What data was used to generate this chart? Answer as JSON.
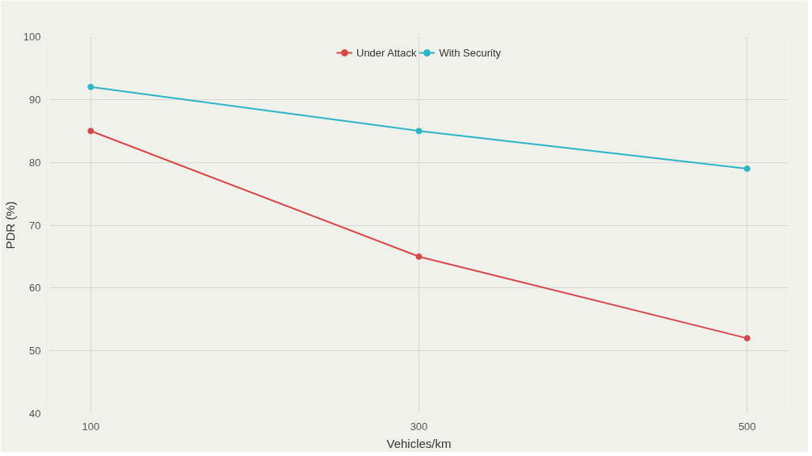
{
  "chart_data": {
    "type": "line",
    "xlabel": "Vehicles/km",
    "ylabel": "PDR (%)",
    "x": [
      100,
      300,
      500
    ],
    "series": [
      {
        "name": "Under Attack",
        "color": "#d94848",
        "values": [
          85,
          65,
          52
        ]
      },
      {
        "name": "With Security",
        "color": "#2bb5c8",
        "values": [
          92,
          85,
          79
        ]
      }
    ],
    "xlim": [
      75,
      525
    ],
    "xticks": [
      100,
      300,
      500
    ],
    "ylim": [
      40,
      100
    ],
    "yticks": [
      40,
      50,
      60,
      70,
      80,
      90,
      100
    ],
    "grid": true,
    "legend": "top",
    "marker": "circle",
    "line_style": "solid"
  }
}
